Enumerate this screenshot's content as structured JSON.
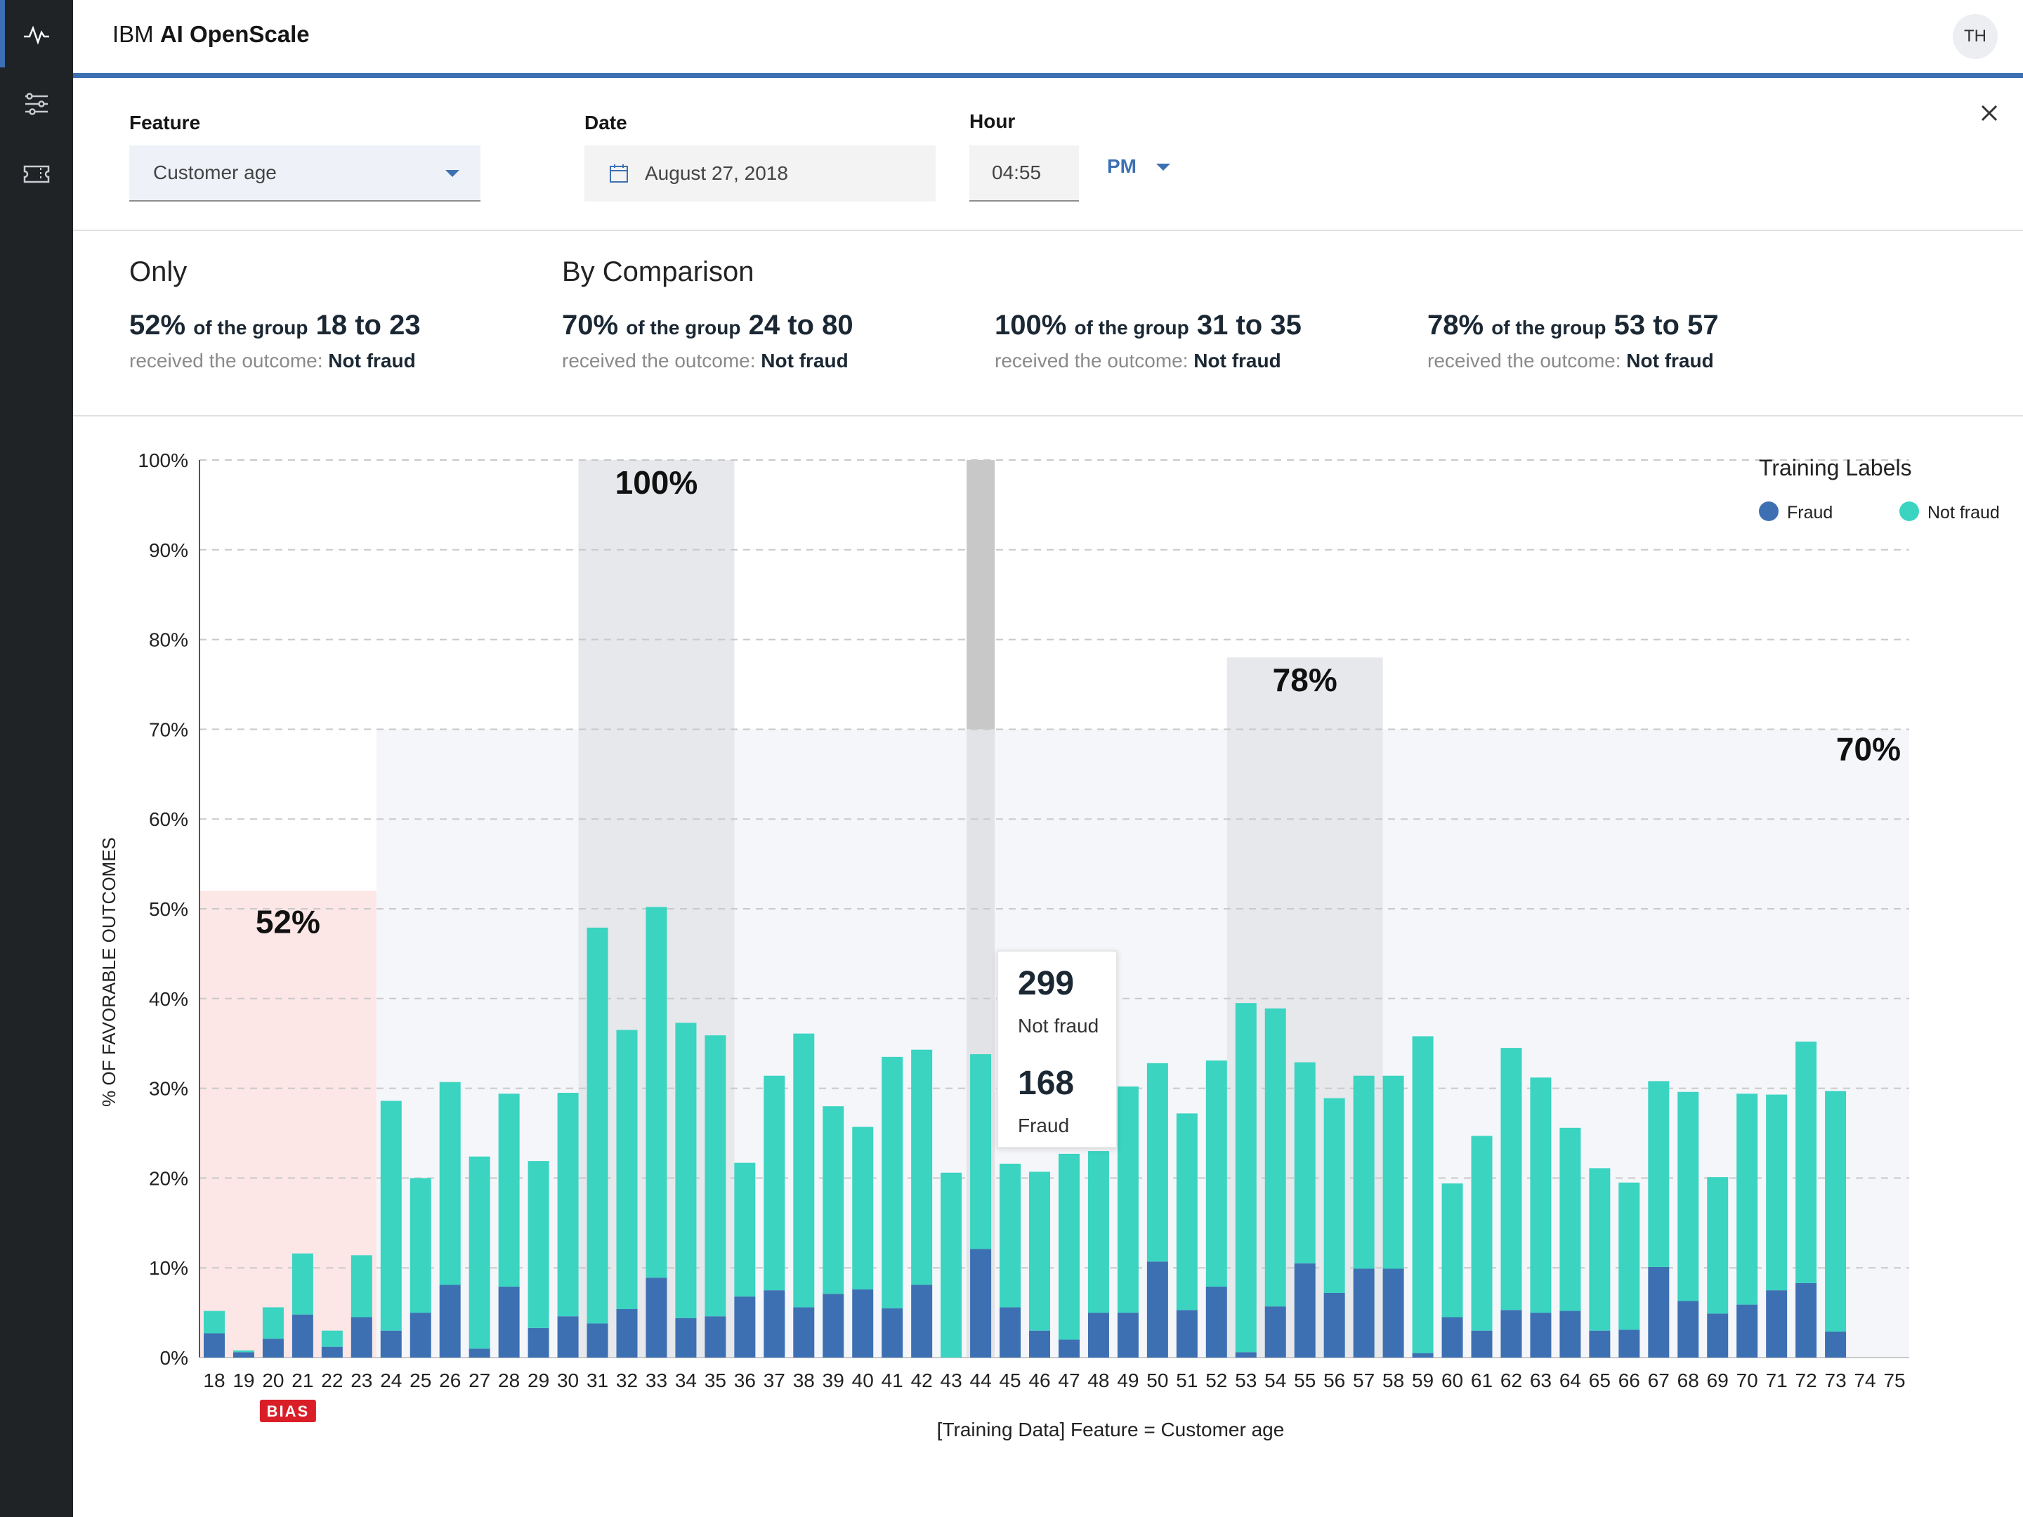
{
  "app": {
    "title_prefix": "IBM",
    "title_main": "AI OpenScale",
    "avatar_initials": "TH"
  },
  "sidebar": {
    "items": [
      {
        "icon": "activity-icon",
        "active": true
      },
      {
        "icon": "sliders-icon",
        "active": false
      },
      {
        "icon": "ticket-icon",
        "active": false
      }
    ]
  },
  "filters": {
    "feature": {
      "label": "Feature",
      "value": "Customer age"
    },
    "date": {
      "label": "Date",
      "value": "August 27, 2018"
    },
    "hour": {
      "label": "Hour",
      "value": "04:55",
      "period": "PM"
    }
  },
  "stats": {
    "only_heading": "Only",
    "comparison_heading": "By Comparison",
    "of_the_group": "of the group",
    "received": "received the outcome:",
    "items": [
      {
        "pct": "52%",
        "group": "18 to 23",
        "outcome": "Not fraud"
      },
      {
        "pct": "70%",
        "group": "24 to 80",
        "outcome": "Not fraud"
      },
      {
        "pct": "100%",
        "group": "31 to 35",
        "outcome": "Not fraud"
      },
      {
        "pct": "78%",
        "group": "53 to 57",
        "outcome": "Not fraud"
      }
    ]
  },
  "tooltip": {
    "value1": "299",
    "label1": "Not fraud",
    "value2": "168",
    "label2": "Fraud"
  },
  "chart_data": {
    "type": "bar",
    "stacked": true,
    "ylabel": "% OF FAVORABLE OUTCOMES",
    "xlabel": "[Training Data] Feature = Customer age",
    "ylim": [
      0,
      100
    ],
    "yticks": [
      "0%",
      "10%",
      "20%",
      "30%",
      "40%",
      "50%",
      "60%",
      "70%",
      "80%",
      "90%",
      "100%"
    ],
    "grid": true,
    "legend": {
      "title": "Training Labels",
      "placement": "top-right"
    },
    "categories": [
      "18",
      "19",
      "20",
      "21",
      "22",
      "23",
      "24",
      "25",
      "26",
      "27",
      "28",
      "29",
      "30",
      "31",
      "32",
      "33",
      "34",
      "35",
      "36",
      "37",
      "38",
      "39",
      "40",
      "41",
      "42",
      "43",
      "44",
      "45",
      "46",
      "47",
      "48",
      "49",
      "50",
      "51",
      "52",
      "53",
      "54",
      "55",
      "56",
      "57",
      "58",
      "59",
      "60",
      "61",
      "62",
      "63",
      "64",
      "65",
      "66",
      "67",
      "68",
      "69",
      "70",
      "71",
      "72",
      "73",
      "74",
      "75"
    ],
    "series": [
      {
        "name": "Fraud",
        "color": "#3d70b2",
        "values": [
          2.7,
          0.6,
          2.1,
          4.8,
          1.2,
          4.5,
          3.0,
          5.0,
          8.1,
          1.0,
          7.9,
          3.3,
          4.6,
          3.8,
          5.4,
          8.9,
          4.4,
          4.6,
          6.8,
          7.5,
          5.6,
          7.1,
          7.6,
          5.5,
          8.1,
          0,
          12.1,
          5.6,
          3.0,
          2.0,
          5.0,
          5.0,
          10.7,
          5.3,
          7.9,
          0.6,
          5.7,
          10.5,
          7.2,
          9.9,
          9.9,
          0.5,
          4.5,
          3.0,
          5.3,
          5.0,
          5.2,
          3.0,
          3.1,
          10.1,
          6.3,
          4.9,
          5.9,
          7.5,
          8.3,
          2.9,
          0,
          0
        ]
      },
      {
        "name": "Not fraud",
        "color": "#3ad4c1",
        "values": [
          2.5,
          0.2,
          3.5,
          6.8,
          1.8,
          6.9,
          25.6,
          15.0,
          22.6,
          21.4,
          21.5,
          18.6,
          24.9,
          44.1,
          31.1,
          41.3,
          32.9,
          31.3,
          14.9,
          23.9,
          30.5,
          20.9,
          18.1,
          28.0,
          26.2,
          20.6,
          21.7,
          16.0,
          17.7,
          20.7,
          18.0,
          25.2,
          22.1,
          21.9,
          25.2,
          38.9,
          33.2,
          22.4,
          21.7,
          21.5,
          21.5,
          35.3,
          14.9,
          21.7,
          29.2,
          26.2,
          20.4,
          18.1,
          16.4,
          20.7,
          23.3,
          15.2,
          23.5,
          21.8,
          26.9,
          26.8,
          0,
          0
        ]
      }
    ],
    "annotations": [
      {
        "label": "52%",
        "group": "18 to 23",
        "value": 52,
        "kind": "bias"
      },
      {
        "label": "70%",
        "group": "24 to 80",
        "value": 70,
        "kind": "reference"
      },
      {
        "label": "100%",
        "group": "31 to 35",
        "value": 100,
        "kind": "comparison"
      },
      {
        "label": "78%",
        "group": "53 to 57",
        "value": 78,
        "kind": "comparison"
      }
    ],
    "bias_badge": "BIAS",
    "selected_category": "44"
  }
}
